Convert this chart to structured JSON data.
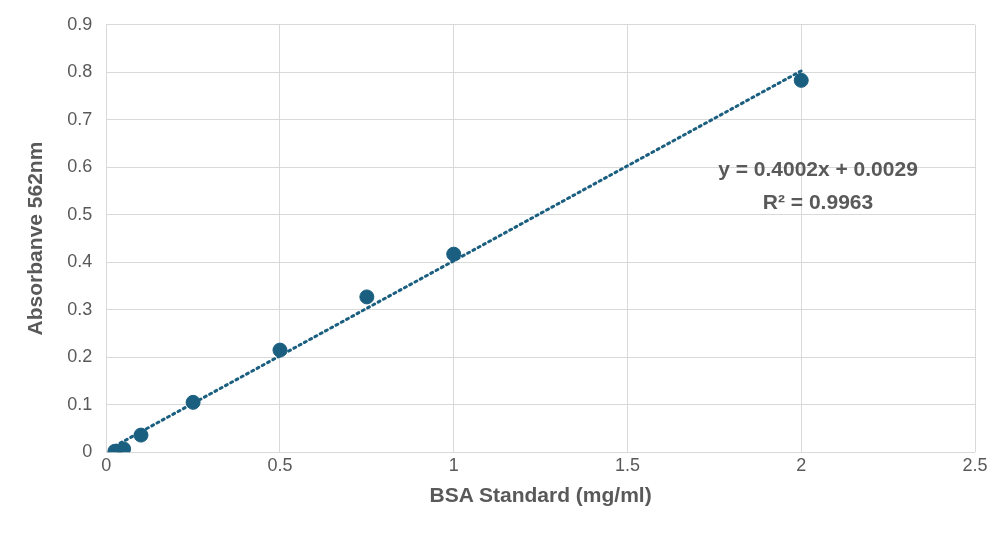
{
  "chart_data": {
    "type": "scatter",
    "xlabel": "BSA Standard (mg/ml)",
    "ylabel": "Absorbanve 562nm",
    "xlim": [
      0,
      2.5
    ],
    "xticks": [
      0,
      0.5,
      1,
      1.5,
      2,
      2.5
    ],
    "ylim": [
      0,
      0.9
    ],
    "yticks": [
      0,
      0.1,
      0.2,
      0.3,
      0.4,
      0.5,
      0.6,
      0.7,
      0.8,
      0.9
    ],
    "grid": true,
    "legend": false,
    "series": [
      {
        "color": "#1b5f80",
        "marker": "circle",
        "x": [
          0.025,
          0.05,
          0.1,
          0.25,
          0.5,
          0.75,
          1,
          2
        ],
        "values": [
          0.002,
          0.007,
          0.036,
          0.105,
          0.215,
          0.327,
          0.417,
          0.783
        ]
      },
      {
        "type": "line",
        "color": "#1b5f80",
        "marker": "none",
        "line_style": "dotted",
        "x": [
          0.025,
          2
        ],
        "values": [
          0.013,
          0.803
        ]
      }
    ],
    "annotations": [
      "y = 0.4002x + 0.0029",
      "R² = 0.9963"
    ]
  }
}
